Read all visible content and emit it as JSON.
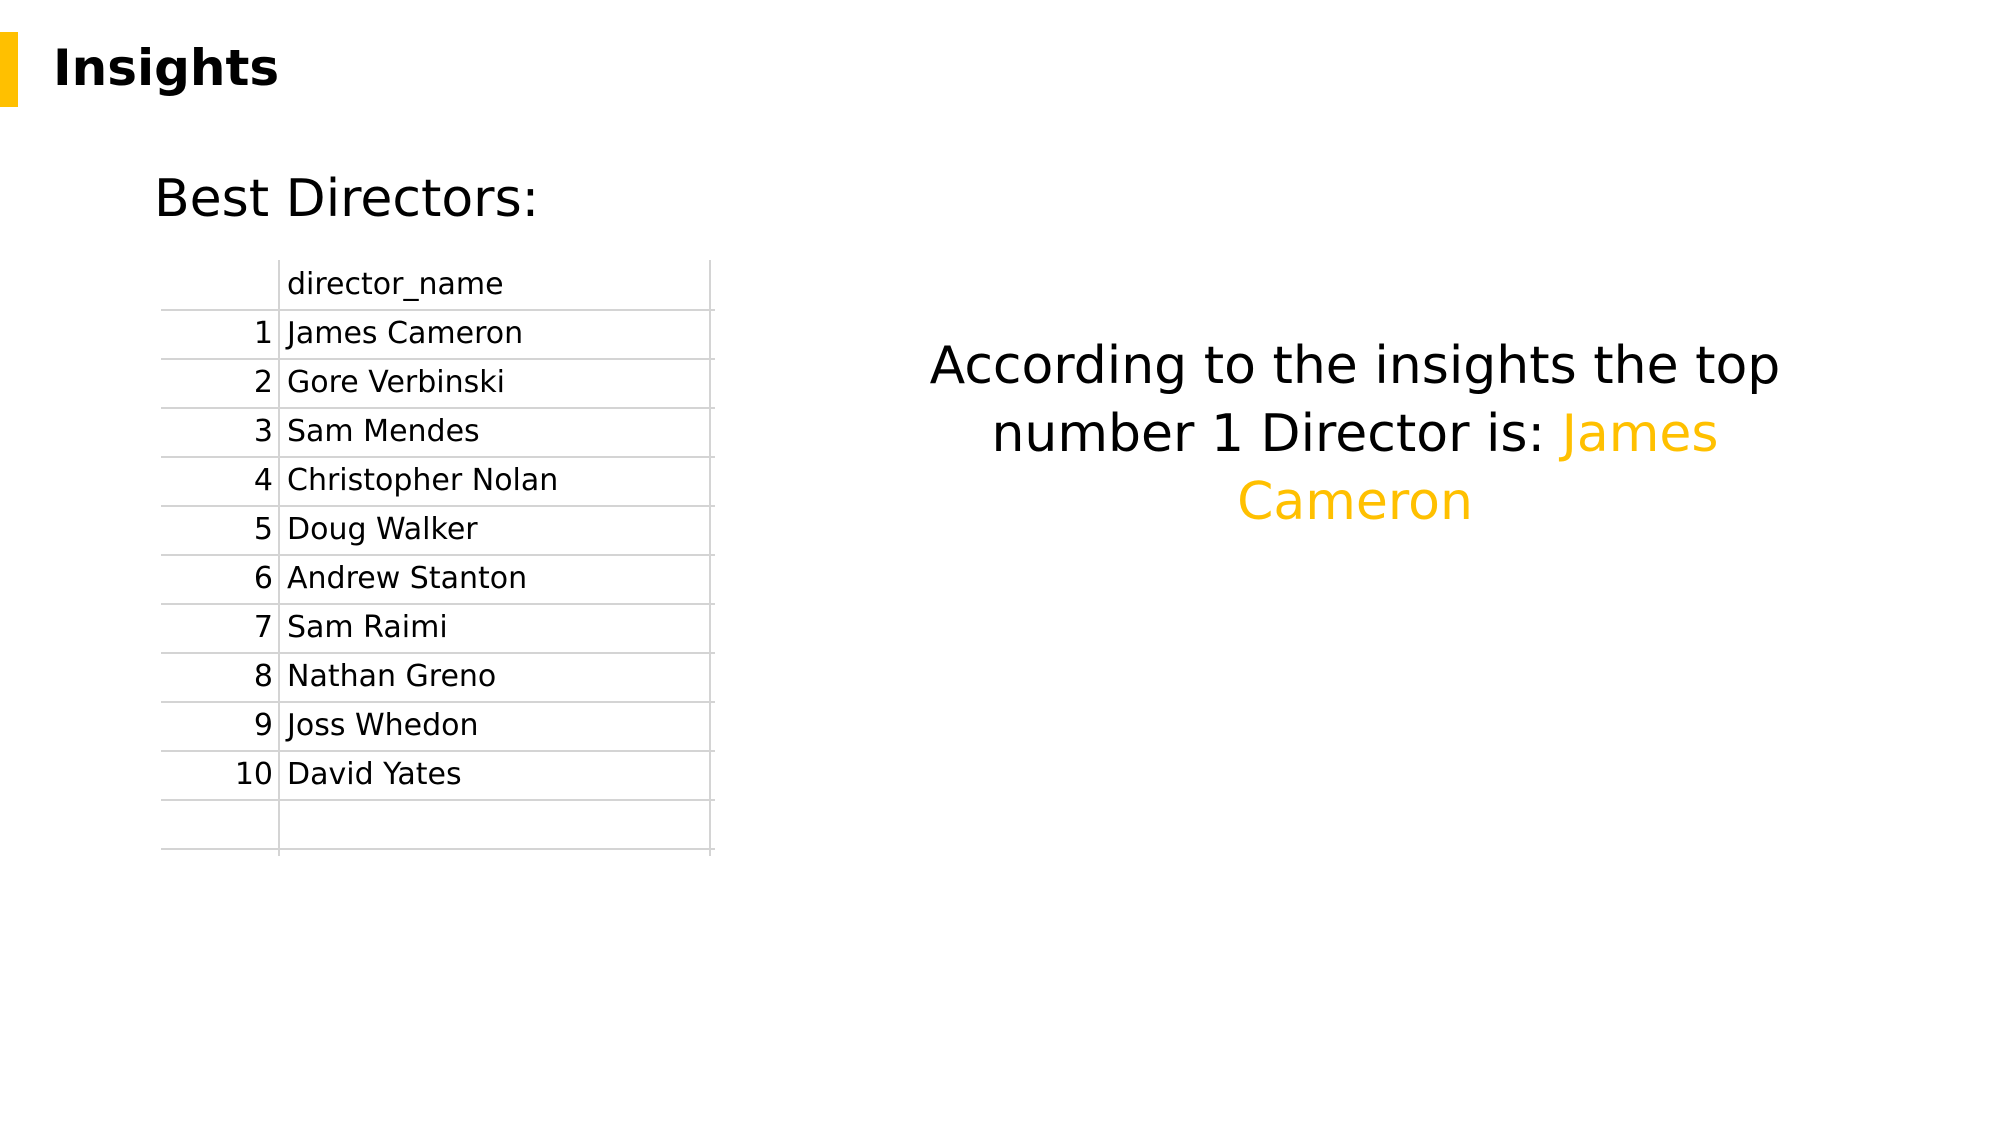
{
  "slide": {
    "title": "Insights",
    "subtitle": "Best Directors:",
    "accent_color": "#FFC000"
  },
  "sheet": {
    "header": "director_name",
    "rows": [
      {
        "index": "1",
        "name": "James Cameron"
      },
      {
        "index": "2",
        "name": "Gore Verbinski"
      },
      {
        "index": "3",
        "name": "Sam Mendes"
      },
      {
        "index": "4",
        "name": "Christopher Nolan"
      },
      {
        "index": "5",
        "name": "Doug Walker"
      },
      {
        "index": "6",
        "name": "Andrew Stanton"
      },
      {
        "index": "7",
        "name": "Sam Raimi"
      },
      {
        "index": "8",
        "name": "Nathan Greno"
      },
      {
        "index": "9",
        "name": "Joss Whedon"
      },
      {
        "index": "10",
        "name": "David Yates"
      }
    ]
  },
  "statement": {
    "text": "According to the insights the top number 1 Director is:",
    "highlight": "James Cameron"
  }
}
